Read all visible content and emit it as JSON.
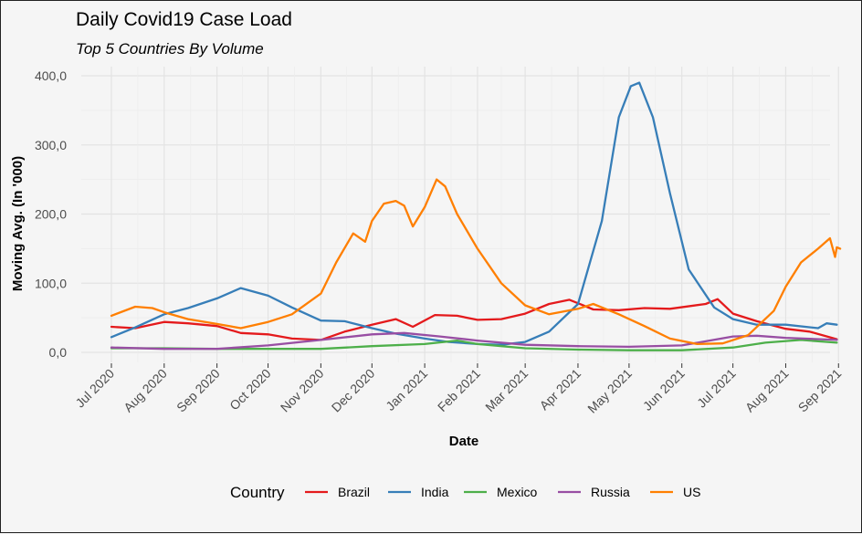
{
  "chart_data": {
    "type": "line",
    "title": "Daily Covid19 Case Load",
    "subtitle": "Top 5 Countries By Volume",
    "xlabel": "Date",
    "ylabel": "Moving Avg. (In '000)",
    "xlim": [
      "2020-07-01",
      "2021-09-01"
    ],
    "ylim": [
      0,
      400
    ],
    "x_ticks": [
      "Jul 2020",
      "Aug 2020",
      "Sep 2020",
      "Oct 2020",
      "Nov 2020",
      "Dec 2020",
      "Jan 2021",
      "Feb 2021",
      "Mar 2021",
      "Apr 2021",
      "May 2021",
      "Jun 2021",
      "Jul 2021",
      "Aug 2021",
      "Sep 2021"
    ],
    "y_ticks": [
      "0,0",
      "100,0",
      "200,0",
      "300,0",
      "400,0"
    ],
    "grid": true,
    "legend": {
      "title": "Country",
      "position": "bottom"
    },
    "series": [
      {
        "name": "Brazil",
        "color": "#e41a1c",
        "points": [
          [
            "2020-07-01",
            37
          ],
          [
            "2020-07-15",
            35
          ],
          [
            "2020-08-01",
            44
          ],
          [
            "2020-08-15",
            42
          ],
          [
            "2020-09-01",
            38
          ],
          [
            "2020-09-15",
            28
          ],
          [
            "2020-10-01",
            26
          ],
          [
            "2020-10-15",
            20
          ],
          [
            "2020-11-01",
            18
          ],
          [
            "2020-11-15",
            30
          ],
          [
            "2020-12-01",
            40
          ],
          [
            "2020-12-15",
            48
          ],
          [
            "2020-12-25",
            37
          ],
          [
            "2021-01-07",
            54
          ],
          [
            "2021-01-20",
            53
          ],
          [
            "2021-02-01",
            47
          ],
          [
            "2021-02-15",
            48
          ],
          [
            "2021-03-01",
            56
          ],
          [
            "2021-03-15",
            70
          ],
          [
            "2021-03-27",
            76
          ],
          [
            "2021-04-10",
            62
          ],
          [
            "2021-04-25",
            61
          ],
          [
            "2021-05-10",
            64
          ],
          [
            "2021-05-25",
            63
          ],
          [
            "2021-06-15",
            70
          ],
          [
            "2021-06-22",
            77
          ],
          [
            "2021-07-01",
            56
          ],
          [
            "2021-07-15",
            45
          ],
          [
            "2021-08-01",
            34
          ],
          [
            "2021-08-15",
            30
          ],
          [
            "2021-08-31",
            19
          ]
        ]
      },
      {
        "name": "India",
        "color": "#377eb8",
        "points": [
          [
            "2020-07-01",
            22
          ],
          [
            "2020-07-15",
            36
          ],
          [
            "2020-08-01",
            55
          ],
          [
            "2020-08-15",
            64
          ],
          [
            "2020-09-01",
            78
          ],
          [
            "2020-09-15",
            93
          ],
          [
            "2020-10-01",
            82
          ],
          [
            "2020-10-15",
            65
          ],
          [
            "2020-11-01",
            46
          ],
          [
            "2020-11-15",
            45
          ],
          [
            "2020-12-01",
            35
          ],
          [
            "2020-12-15",
            27
          ],
          [
            "2021-01-01",
            20
          ],
          [
            "2021-01-15",
            15
          ],
          [
            "2021-02-01",
            12
          ],
          [
            "2021-02-15",
            11
          ],
          [
            "2021-03-01",
            15
          ],
          [
            "2021-03-15",
            30
          ],
          [
            "2021-04-01",
            70
          ],
          [
            "2021-04-15",
            190
          ],
          [
            "2021-04-25",
            340
          ],
          [
            "2021-05-02",
            385
          ],
          [
            "2021-05-07",
            390
          ],
          [
            "2021-05-15",
            340
          ],
          [
            "2021-05-25",
            230
          ],
          [
            "2021-06-05",
            120
          ],
          [
            "2021-06-20",
            65
          ],
          [
            "2021-07-01",
            48
          ],
          [
            "2021-07-15",
            40
          ],
          [
            "2021-08-01",
            40
          ],
          [
            "2021-08-20",
            35
          ],
          [
            "2021-08-25",
            42
          ],
          [
            "2021-08-31",
            40
          ]
        ]
      },
      {
        "name": "Mexico",
        "color": "#4daf4a",
        "points": [
          [
            "2020-07-01",
            6
          ],
          [
            "2020-08-01",
            6
          ],
          [
            "2020-09-01",
            5
          ],
          [
            "2020-10-01",
            5
          ],
          [
            "2020-11-01",
            5
          ],
          [
            "2020-12-01",
            9
          ],
          [
            "2021-01-01",
            12
          ],
          [
            "2021-01-20",
            17
          ],
          [
            "2021-02-01",
            12
          ],
          [
            "2021-03-01",
            6
          ],
          [
            "2021-04-01",
            4
          ],
          [
            "2021-05-01",
            3
          ],
          [
            "2021-06-01",
            3
          ],
          [
            "2021-07-01",
            7
          ],
          [
            "2021-07-20",
            14
          ],
          [
            "2021-08-10",
            18
          ],
          [
            "2021-08-31",
            14
          ]
        ]
      },
      {
        "name": "Russia",
        "color": "#984ea3",
        "points": [
          [
            "2020-07-01",
            7
          ],
          [
            "2020-08-01",
            5
          ],
          [
            "2020-09-01",
            5
          ],
          [
            "2020-10-01",
            10
          ],
          [
            "2020-11-01",
            18
          ],
          [
            "2020-12-01",
            26
          ],
          [
            "2020-12-20",
            28
          ],
          [
            "2021-01-10",
            23
          ],
          [
            "2021-02-01",
            17
          ],
          [
            "2021-03-01",
            11
          ],
          [
            "2021-04-01",
            9
          ],
          [
            "2021-05-01",
            8
          ],
          [
            "2021-06-01",
            10
          ],
          [
            "2021-06-15",
            16
          ],
          [
            "2021-07-01",
            23
          ],
          [
            "2021-07-15",
            24
          ],
          [
            "2021-08-01",
            21
          ],
          [
            "2021-08-31",
            18
          ]
        ]
      },
      {
        "name": "US",
        "color": "#ff7f00",
        "points": [
          [
            "2020-07-01",
            53
          ],
          [
            "2020-07-15",
            66
          ],
          [
            "2020-07-25",
            64
          ],
          [
            "2020-08-01",
            58
          ],
          [
            "2020-08-15",
            48
          ],
          [
            "2020-09-01",
            41
          ],
          [
            "2020-09-15",
            35
          ],
          [
            "2020-10-01",
            44
          ],
          [
            "2020-10-15",
            55
          ],
          [
            "2020-11-01",
            85
          ],
          [
            "2020-11-10",
            130
          ],
          [
            "2020-11-20",
            172
          ],
          [
            "2020-11-27",
            160
          ],
          [
            "2020-12-01",
            190
          ],
          [
            "2020-12-08",
            215
          ],
          [
            "2020-12-15",
            219
          ],
          [
            "2020-12-20",
            212
          ],
          [
            "2020-12-25",
            182
          ],
          [
            "2021-01-01",
            210
          ],
          [
            "2021-01-08",
            250
          ],
          [
            "2021-01-13",
            240
          ],
          [
            "2021-01-20",
            200
          ],
          [
            "2021-02-01",
            150
          ],
          [
            "2021-02-15",
            100
          ],
          [
            "2021-03-01",
            68
          ],
          [
            "2021-03-15",
            55
          ],
          [
            "2021-04-01",
            63
          ],
          [
            "2021-04-10",
            70
          ],
          [
            "2021-04-25",
            55
          ],
          [
            "2021-05-10",
            38
          ],
          [
            "2021-05-25",
            20
          ],
          [
            "2021-06-10",
            12
          ],
          [
            "2021-06-25",
            13
          ],
          [
            "2021-07-10",
            25
          ],
          [
            "2021-07-25",
            60
          ],
          [
            "2021-08-01",
            95
          ],
          [
            "2021-08-10",
            130
          ],
          [
            "2021-08-20",
            150
          ],
          [
            "2021-08-27",
            165
          ],
          [
            "2021-08-30",
            138
          ],
          [
            "2021-08-31",
            152
          ],
          [
            "2021-09-02",
            150
          ]
        ]
      }
    ]
  }
}
